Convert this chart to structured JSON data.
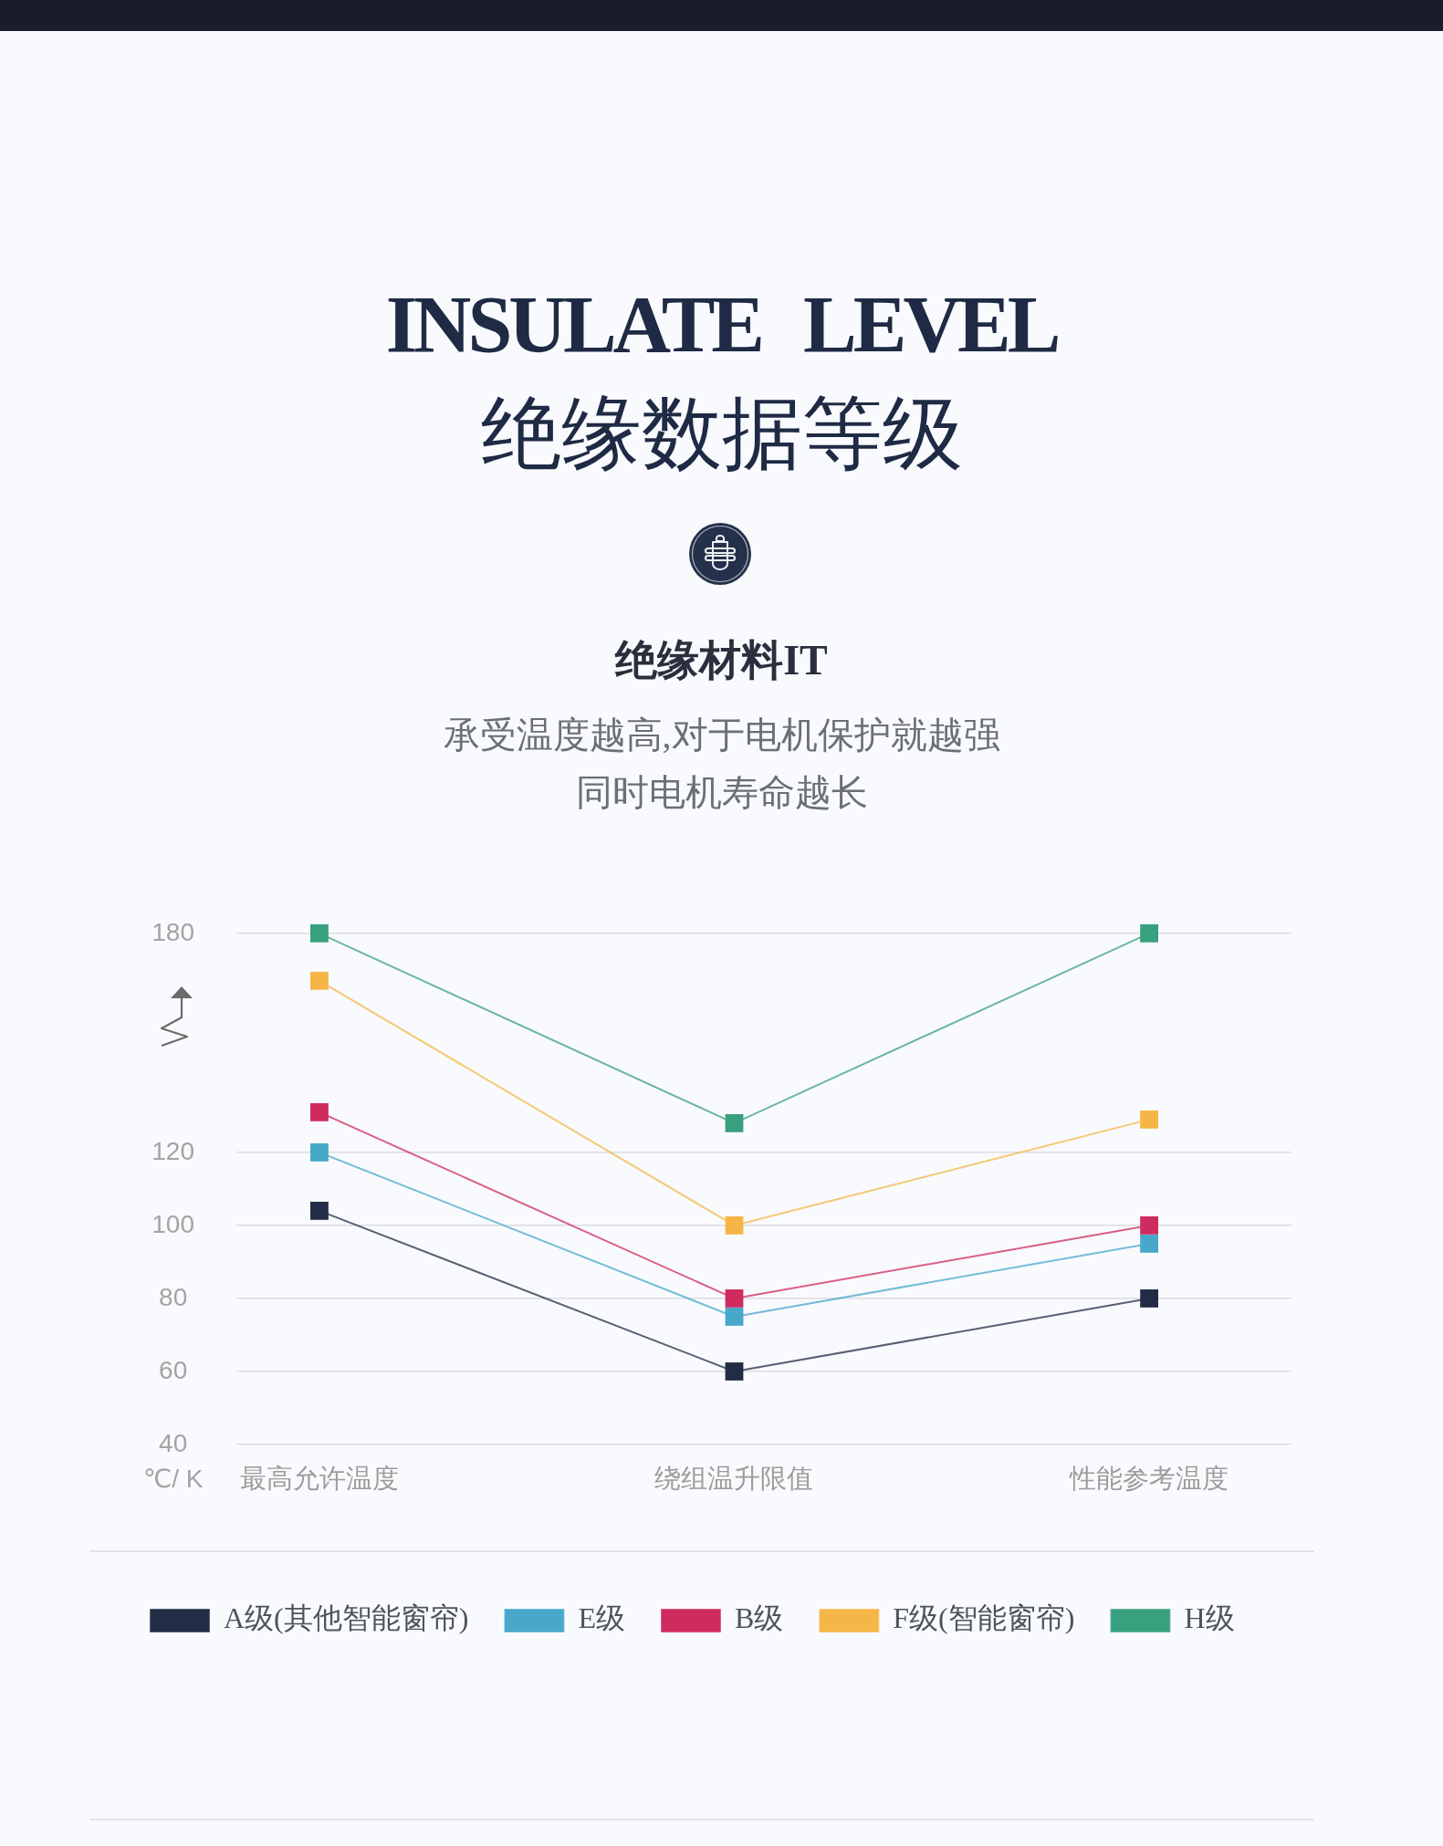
{
  "chart_data": {
    "type": "line",
    "title": "INSULATE LEVEL",
    "subtitle": "绝缘数据等级",
    "ylabel": "℃/ K",
    "annotations": [
      "绝缘材料IT",
      "承受温度越高,对于电机保护就越强",
      "同时电机寿命越长"
    ],
    "categories": [
      "最高允许温度",
      "绕组温升限值",
      "性能参考温度"
    ],
    "series": [
      {
        "name": "A级(其他智能窗帘)",
        "color": "#222d45",
        "values": [
          104,
          60,
          80
        ]
      },
      {
        "name": "E级",
        "color": "#47a8c9",
        "values": [
          120,
          75,
          95
        ]
      },
      {
        "name": "B级",
        "color": "#cf2b5f",
        "values": [
          131,
          80,
          100
        ]
      },
      {
        "name": "F级(智能窗帘)",
        "color": "#f6b647",
        "values": [
          167,
          100,
          129
        ]
      },
      {
        "name": "H级",
        "color": "#38a07e",
        "values": [
          180,
          128,
          180
        ]
      }
    ],
    "ylim": [
      40,
      180
    ],
    "yticks": [
      40,
      60,
      80,
      100,
      120,
      180
    ],
    "grid": "y",
    "legend": "bottom",
    "marker": "square",
    "line_style": "solid"
  }
}
